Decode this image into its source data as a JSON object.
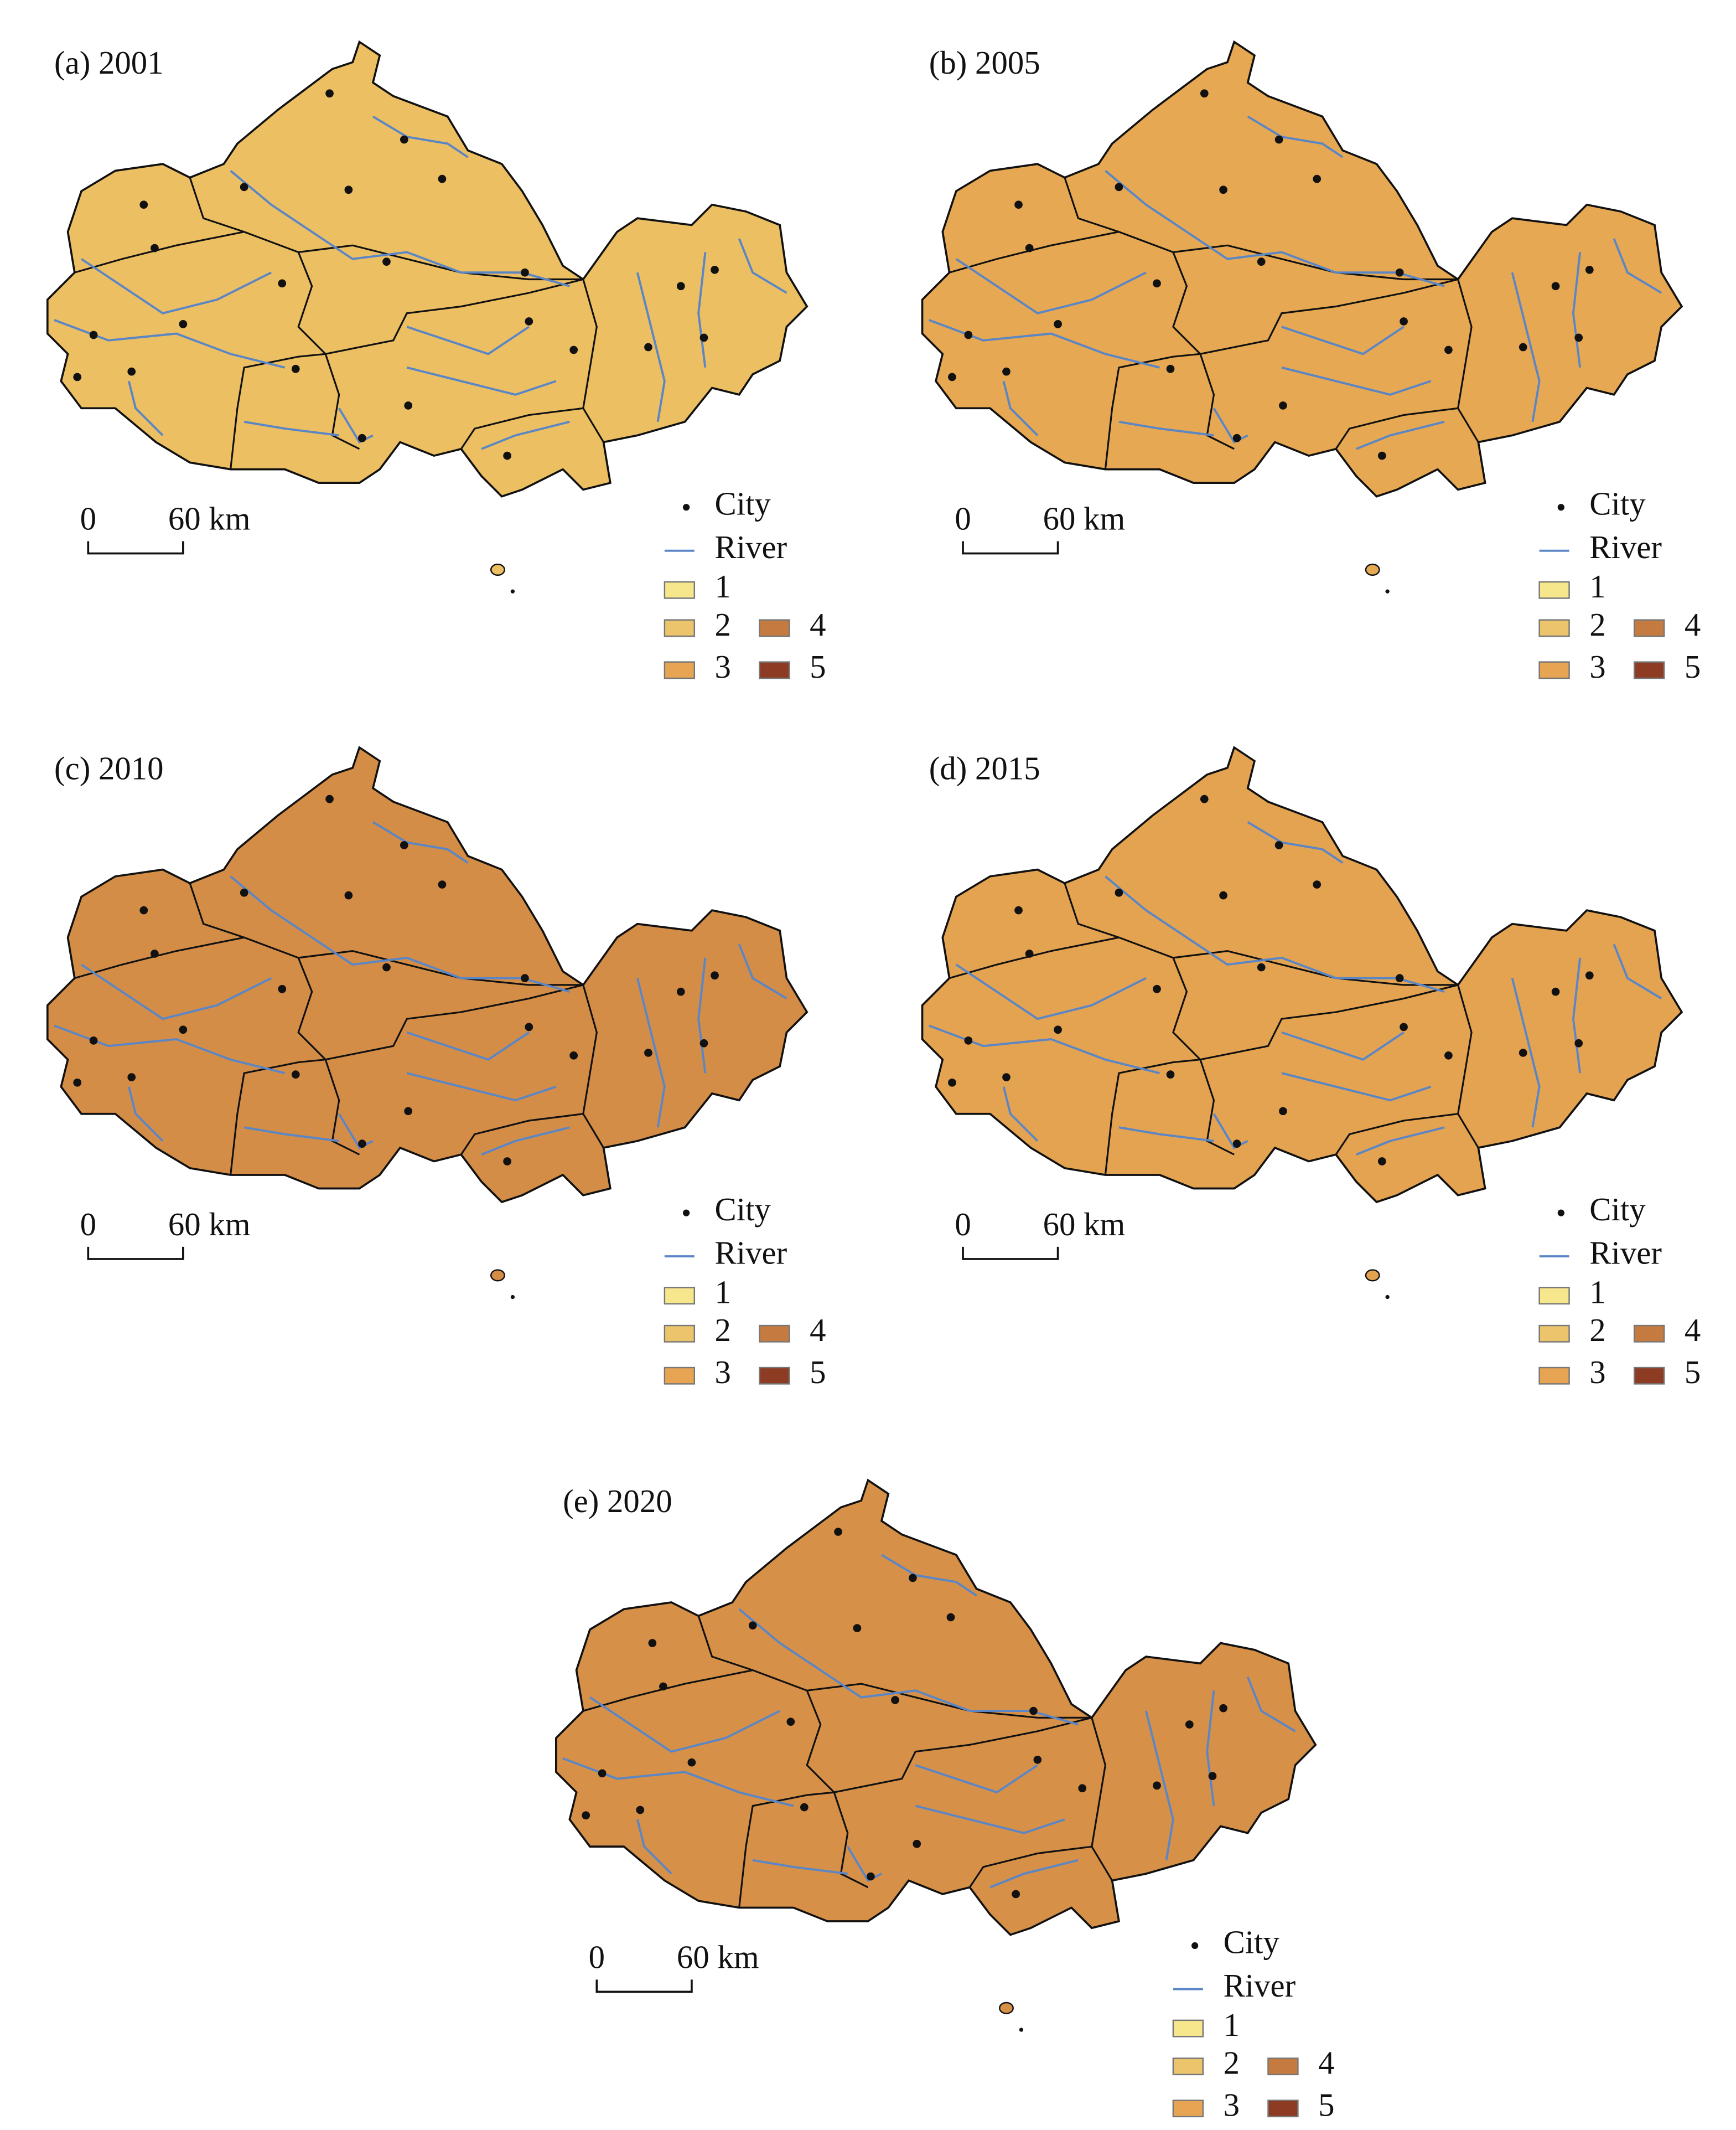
{
  "panels": [
    {
      "title": "(a) 2001",
      "map_color": "#ecbf63"
    },
    {
      "title": "(b) 2005",
      "map_color": "#e6a852"
    },
    {
      "title": "(c) 2010",
      "map_color": "#d48d47"
    },
    {
      "title": "(d) 2015",
      "map_color": "#e3a351"
    },
    {
      "title": "(e) 2020",
      "map_color": "#d69048"
    }
  ],
  "scale_bar": {
    "start": "0",
    "end": "60 km"
  },
  "legend": {
    "city": "City",
    "river": "River",
    "river_color": "#5b86c5",
    "classes": [
      {
        "label": "1",
        "color": "#f6e68c"
      },
      {
        "label": "2",
        "color": "#ebc46b"
      },
      {
        "label": "3",
        "color": "#e7a554"
      },
      {
        "label": "4",
        "color": "#c57a3f"
      },
      {
        "label": "5",
        "color": "#8d3b22"
      }
    ]
  }
}
